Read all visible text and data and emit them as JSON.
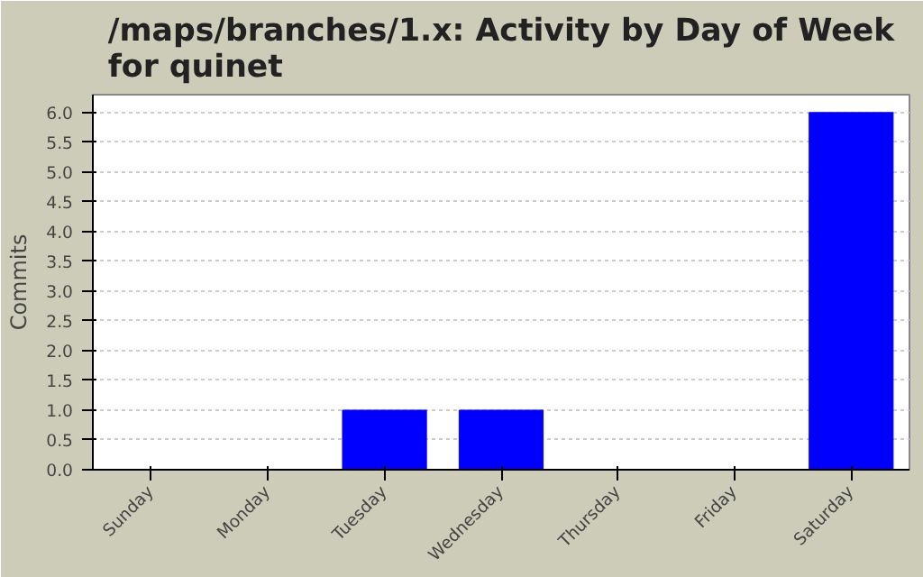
{
  "chart_data": {
    "type": "bar",
    "title": "/maps/branches/1.x: Activity by Day of Week for quinet",
    "ylabel": "Commits",
    "categories": [
      "Sunday",
      "Monday",
      "Tuesday",
      "Wednesday",
      "Thursday",
      "Friday",
      "Saturday"
    ],
    "values": [
      0,
      0,
      1,
      1,
      0,
      0,
      6
    ],
    "color": "#0000ff",
    "ylim": [
      0,
      6.3
    ],
    "yticks": [
      {
        "value": 0,
        "label": "0.0"
      },
      {
        "value": 0.5,
        "label": "0.5"
      },
      {
        "value": 1,
        "label": "1.0"
      },
      {
        "value": 1.5,
        "label": "1.5"
      },
      {
        "value": 2,
        "label": "2.0"
      },
      {
        "value": 2.5,
        "label": "2.5"
      },
      {
        "value": 3,
        "label": "3.0"
      },
      {
        "value": 3.5,
        "label": "3.5"
      },
      {
        "value": 4,
        "label": "4.0"
      },
      {
        "value": 4.5,
        "label": "4.5"
      },
      {
        "value": 5,
        "label": "5.0"
      },
      {
        "value": 5.5,
        "label": "5.5"
      },
      {
        "value": 6,
        "label": "6.0"
      }
    ],
    "grid": "y"
  }
}
